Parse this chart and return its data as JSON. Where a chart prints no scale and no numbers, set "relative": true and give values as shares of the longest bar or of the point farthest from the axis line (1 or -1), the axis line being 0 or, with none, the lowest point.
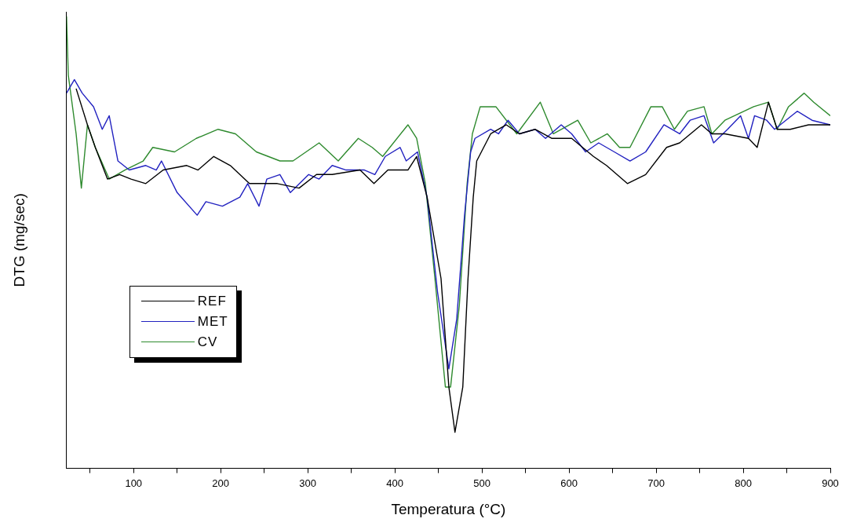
{
  "chart_data": {
    "type": "line",
    "relative": true,
    "xlabel": "Temperatura (°C)",
    "ylabel": "DTG (mg/sec)",
    "xlim": [
      23,
      900
    ],
    "xticks": [
      {
        "value": 50,
        "label": null
      },
      100,
      {
        "value": 150,
        "label": null
      },
      200,
      {
        "value": 250,
        "label": null
      },
      300,
      {
        "value": 350,
        "label": null
      },
      400,
      {
        "value": 450,
        "label": null
      },
      500,
      {
        "value": 550,
        "label": null
      },
      600,
      {
        "value": 650,
        "label": null
      },
      700,
      {
        "value": 750,
        "label": null
      },
      800,
      {
        "value": 850,
        "label": null
      },
      900
    ],
    "legend": "bottom left",
    "grid": false,
    "marker": "none",
    "line_style": "solid",
    "series": [
      {
        "name": "REF",
        "color": "#000000",
        "x": [
          34,
          47,
          56,
          70,
          84,
          97,
          114,
          134,
          161,
          174,
          192,
          211,
          233,
          265,
          290,
          310,
          328,
          360,
          376,
          392,
          415,
          425,
          437,
          453,
          462,
          469,
          478,
          484,
          490,
          494,
          510,
          528,
          543,
          561,
          580,
          603,
          628,
          643,
          667,
          688,
          712,
          727,
          752,
          764,
          779,
          806,
          816,
          829,
          839,
          854,
          875,
          900
        ],
        "values": [
          0.84,
          0.76,
          0.71,
          0.64,
          0.65,
          0.64,
          0.63,
          0.66,
          0.67,
          0.66,
          0.69,
          0.67,
          0.63,
          0.63,
          0.62,
          0.65,
          0.65,
          0.66,
          0.63,
          0.66,
          0.66,
          0.69,
          0.6,
          0.42,
          0.18,
          0.08,
          0.18,
          0.42,
          0.6,
          0.68,
          0.74,
          0.76,
          0.74,
          0.75,
          0.73,
          0.73,
          0.69,
          0.67,
          0.63,
          0.65,
          0.71,
          0.72,
          0.76,
          0.74,
          0.74,
          0.73,
          0.71,
          0.81,
          0.75,
          0.75,
          0.76,
          0.76
        ]
      },
      {
        "name": "MET",
        "color": "#2222c0",
        "x": [
          23,
          32,
          41,
          54,
          64,
          72,
          82,
          95,
          114,
          126,
          132,
          150,
          173,
          183,
          202,
          222,
          231,
          244,
          253,
          268,
          280,
          301,
          313,
          328,
          344,
          365,
          377,
          389,
          406,
          413,
          426,
          437,
          449,
          462,
          471,
          480,
          487,
          492,
          510,
          519,
          530,
          543,
          561,
          573,
          591,
          603,
          619,
          634,
          652,
          670,
          688,
          709,
          727,
          739,
          755,
          766,
          782,
          797,
          806,
          813,
          827,
          836,
          862,
          879,
          900
        ],
        "values": [
          0.83,
          0.86,
          0.83,
          0.8,
          0.75,
          0.78,
          0.68,
          0.66,
          0.67,
          0.66,
          0.68,
          0.61,
          0.56,
          0.59,
          0.58,
          0.6,
          0.63,
          0.58,
          0.64,
          0.65,
          0.61,
          0.65,
          0.64,
          0.67,
          0.66,
          0.66,
          0.65,
          0.69,
          0.71,
          0.68,
          0.7,
          0.6,
          0.39,
          0.22,
          0.33,
          0.56,
          0.7,
          0.73,
          0.75,
          0.74,
          0.77,
          0.74,
          0.75,
          0.73,
          0.76,
          0.74,
          0.7,
          0.72,
          0.7,
          0.68,
          0.7,
          0.76,
          0.74,
          0.77,
          0.78,
          0.72,
          0.75,
          0.78,
          0.73,
          0.78,
          0.77,
          0.75,
          0.79,
          0.77,
          0.76
        ]
      },
      {
        "name": "CV",
        "color": "#2e8a2e",
        "x": [
          23,
          25,
          34,
          40,
          47,
          56,
          72,
          90,
          111,
          122,
          147,
          172,
          197,
          217,
          241,
          268,
          283,
          313,
          335,
          358,
          374,
          386,
          415,
          425,
          435,
          446,
          458,
          464,
          474,
          483,
          489,
          498,
          516,
          540,
          567,
          582,
          610,
          625,
          644,
          658,
          670,
          694,
          707,
          721,
          736,
          755,
          764,
          779,
          812,
          829,
          839,
          852,
          870,
          881,
          900
        ],
        "values": [
          1,
          0.87,
          0.74,
          0.62,
          0.76,
          0.71,
          0.64,
          0.66,
          0.68,
          0.71,
          0.7,
          0.73,
          0.75,
          0.74,
          0.7,
          0.68,
          0.68,
          0.72,
          0.68,
          0.73,
          0.71,
          0.69,
          0.76,
          0.73,
          0.63,
          0.42,
          0.18,
          0.18,
          0.36,
          0.63,
          0.74,
          0.8,
          0.8,
          0.74,
          0.81,
          0.74,
          0.77,
          0.72,
          0.74,
          0.71,
          0.71,
          0.8,
          0.8,
          0.75,
          0.79,
          0.8,
          0.74,
          0.77,
          0.8,
          0.81,
          0.75,
          0.8,
          0.83,
          0.81,
          0.78
        ]
      }
    ]
  }
}
